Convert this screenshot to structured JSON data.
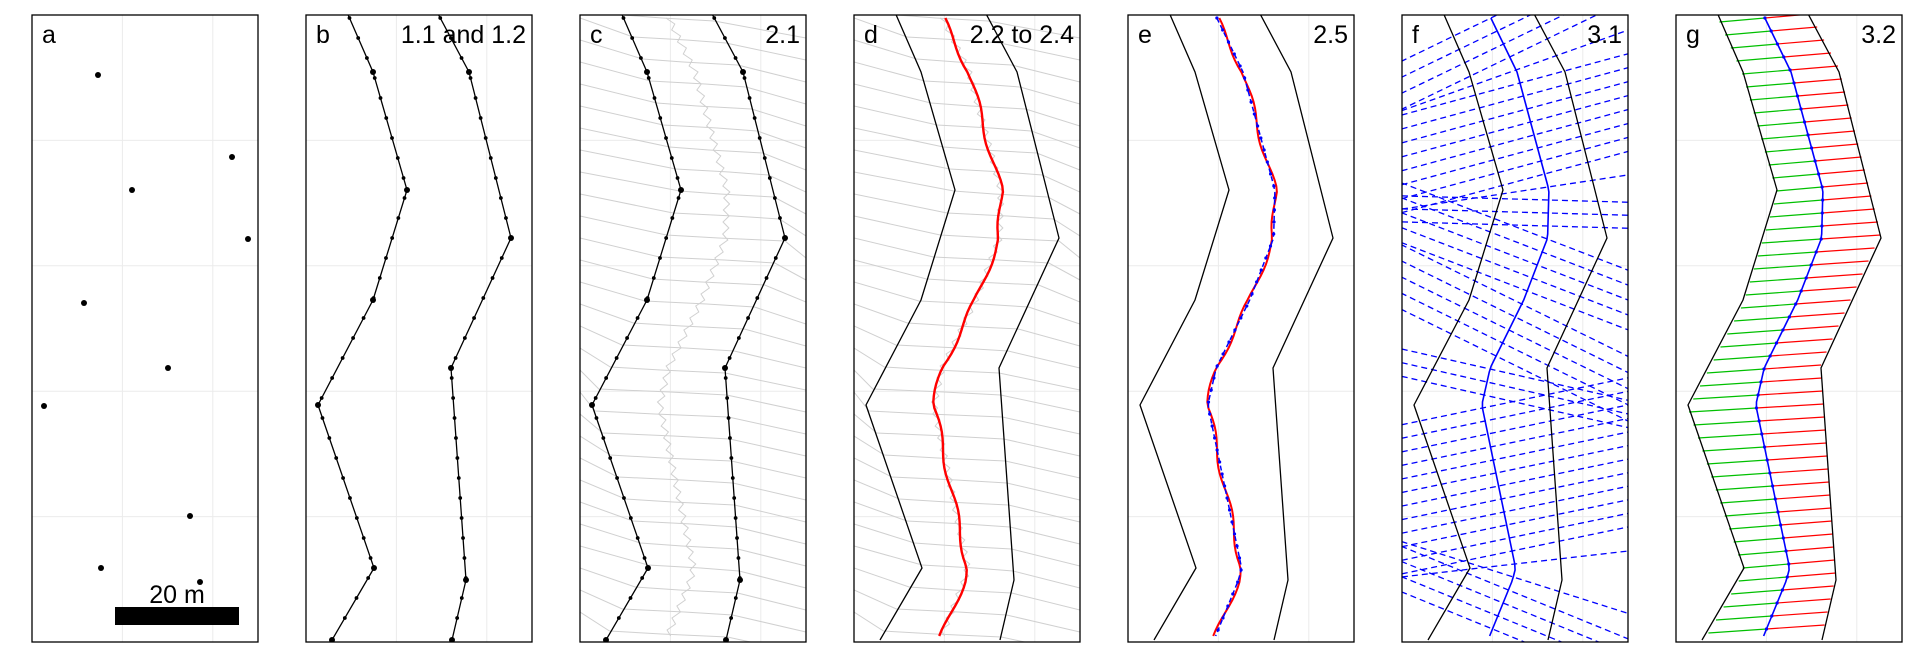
{
  "figure": {
    "grid_color": "#ebebeb",
    "panels": [
      {
        "letter": "a",
        "step": ""
      },
      {
        "letter": "b",
        "step": "1.1 and 1.2"
      },
      {
        "letter": "c",
        "step": "2.1"
      },
      {
        "letter": "d",
        "step": "2.2 to 2.4"
      },
      {
        "letter": "e",
        "step": "2.5"
      },
      {
        "letter": "f",
        "step": "3.1"
      },
      {
        "letter": "g",
        "step": "3.2"
      }
    ],
    "scale_bar": {
      "label": "20 m",
      "length_m": 20
    },
    "colors": {
      "line": "#000000",
      "voronoi": "#d0d0d0",
      "centerline": "#ff0000",
      "smoothed": "#0000ff",
      "left_bank": "#00c000",
      "right_bank": "#ff0000"
    }
  }
}
